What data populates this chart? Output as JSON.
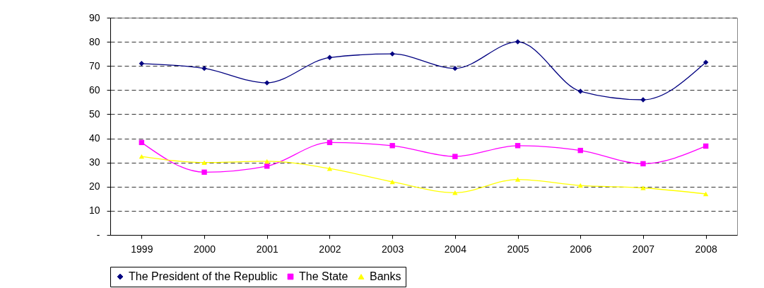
{
  "chart_data": {
    "type": "line",
    "categories": [
      "1999",
      "2000",
      "2001",
      "2002",
      "2003",
      "2004",
      "2005",
      "2006",
      "2007",
      "2008"
    ],
    "series": [
      {
        "name": "The President of the Republic",
        "color": "#000080",
        "marker": "diamond",
        "values": [
          71,
          69,
          63,
          73.5,
          75,
          69,
          80,
          59.5,
          56,
          71.5
        ]
      },
      {
        "name": "The State",
        "color": "#ff00ff",
        "marker": "square",
        "values": [
          38.3,
          26,
          28.5,
          38.3,
          37,
          32.5,
          37,
          35,
          29.5,
          36.8
        ]
      },
      {
        "name": "Banks",
        "color": "#ffff00",
        "marker": "triangle",
        "values": [
          32.5,
          30,
          30.5,
          27.5,
          22,
          17.5,
          23,
          20.5,
          19.5,
          17
        ]
      }
    ],
    "ylim": [
      0,
      90
    ],
    "yticks": [
      {
        "value": 0,
        "label": "-"
      },
      10,
      20,
      30,
      40,
      50,
      60,
      70,
      80,
      90
    ],
    "grid": "y",
    "legend": "bottom",
    "line_style": "solid"
  }
}
